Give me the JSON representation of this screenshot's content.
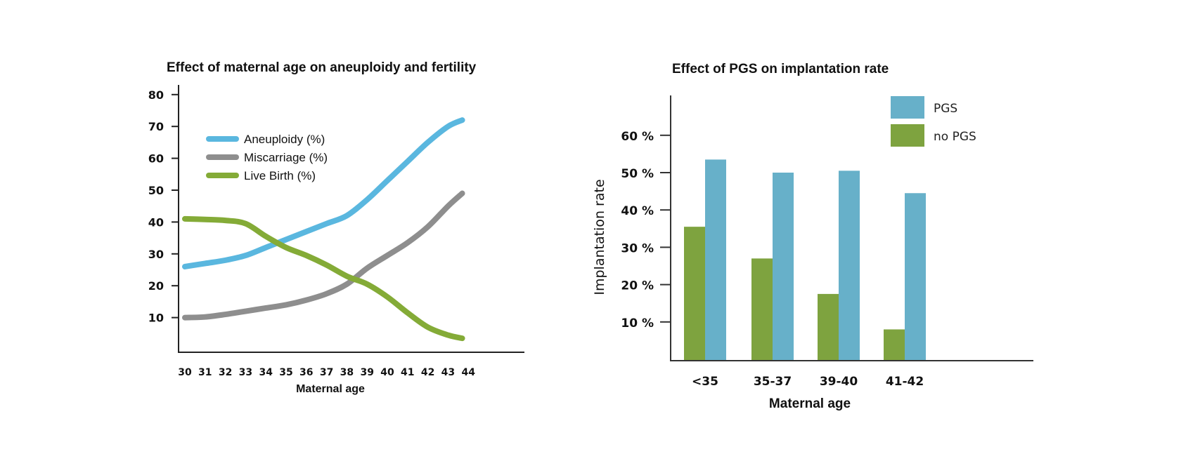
{
  "chart_data": [
    {
      "type": "line",
      "title": "Effect of maternal age on aneuploidy and fertility",
      "xlabel": "Maternal age",
      "ylabel": "",
      "ylim": [
        0,
        80
      ],
      "yticks": [
        10,
        20,
        30,
        40,
        50,
        60,
        70,
        80
      ],
      "xticks": [
        30,
        31,
        32,
        33,
        34,
        35,
        36,
        37,
        38,
        39,
        40,
        41,
        42,
        43,
        44
      ],
      "x": [
        30,
        31,
        32,
        33,
        34,
        35,
        36,
        37,
        38,
        39,
        40,
        41,
        42,
        43,
        43.7
      ],
      "legend_position": "top-left",
      "grid": false,
      "series": [
        {
          "name": "Aneuploidy (%)",
          "color": "#5ab7df",
          "values": [
            26,
            27,
            28,
            29.5,
            32,
            34.5,
            37,
            39.5,
            42,
            47,
            53,
            59,
            65,
            70,
            72
          ]
        },
        {
          "name": "Miscarriage (%)",
          "color": "#8e8e8e",
          "values": [
            10,
            10.2,
            11,
            12,
            13,
            14,
            15.5,
            17.5,
            20.5,
            25.5,
            29.5,
            33.5,
            38.5,
            45,
            49
          ]
        },
        {
          "name": "Live Birth (%)",
          "color": "#84ab37",
          "values": [
            41,
            40.8,
            40.5,
            39.5,
            35.5,
            32,
            29.5,
            26.5,
            23,
            20.5,
            16.5,
            11.5,
            7,
            4.5,
            3.5
          ]
        }
      ]
    },
    {
      "type": "bar",
      "title": "Effect of PGS on implantation rate",
      "xlabel": "Maternal age",
      "ylabel": "Implantation rate",
      "ylim": [
        0,
        70
      ],
      "yticks": [
        "10 %",
        "20 %",
        "30 %",
        "40 %",
        "50 %",
        "60 %"
      ],
      "ytick_values": [
        10,
        20,
        30,
        40,
        50,
        60
      ],
      "categories": [
        "<35",
        "35-37",
        "39-40",
        "41-42"
      ],
      "legend_position": "top-right",
      "grid": false,
      "series": [
        {
          "name": "no PGS",
          "color": "#7ea33f",
          "values": [
            35.5,
            27,
            17.5,
            8
          ]
        },
        {
          "name": "PGS",
          "color": "#67b0c9",
          "values": [
            53.5,
            50,
            50.5,
            44.5
          ]
        }
      ],
      "legend_order": [
        "PGS",
        "no PGS"
      ]
    }
  ]
}
